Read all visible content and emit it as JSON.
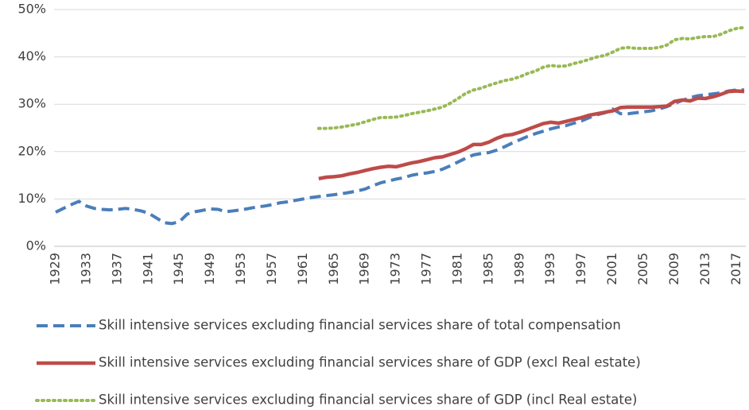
{
  "chart_data": {
    "type": "line",
    "categories": [
      "1929",
      null,
      null,
      null,
      "1933",
      null,
      null,
      null,
      "1937",
      null,
      null,
      null,
      "1941",
      null,
      null,
      null,
      "1945",
      null,
      null,
      null,
      "1949",
      null,
      null,
      null,
      "1953",
      null,
      null,
      null,
      "1957",
      null,
      null,
      null,
      "1961",
      null,
      null,
      null,
      "1965",
      null,
      null,
      null,
      "1969",
      null,
      null,
      null,
      "1973",
      null,
      null,
      null,
      "1977",
      null,
      null,
      null,
      "1981",
      null,
      null,
      null,
      "1985",
      null,
      null,
      null,
      "1989",
      null,
      null,
      null,
      "1993",
      null,
      null,
      null,
      "1997",
      null,
      null,
      null,
      "2001",
      null,
      null,
      null,
      "2005",
      null,
      null,
      null,
      "2009",
      null,
      null,
      null,
      "2013",
      null,
      null,
      null,
      "2017",
      null
    ],
    "series": [
      {
        "name": "Skill intensive services excluding financial services share of total compensation",
        "color": "#4a7ebb",
        "style": "dashed",
        "values": [
          7.2,
          8,
          8.8,
          9.5,
          8.5,
          8,
          7.8,
          7.7,
          7.8,
          8,
          7.8,
          7.5,
          7,
          6,
          5,
          4.8,
          5.2,
          6.8,
          7.3,
          7.6,
          7.9,
          7.8,
          7.3,
          7.5,
          7.7,
          8,
          8.3,
          8.5,
          8.8,
          9.2,
          9.4,
          9.7,
          10,
          10.3,
          10.5,
          10.7,
          10.9,
          11.1,
          11.4,
          11.7,
          12.1,
          12.8,
          13.4,
          13.8,
          14.2,
          14.5,
          15,
          15.3,
          15.5,
          15.8,
          16.3,
          17,
          17.8,
          18.6,
          19.3,
          19.6,
          19.8,
          20.3,
          21,
          21.8,
          22.5,
          23.2,
          23.8,
          24.3,
          24.8,
          25.2,
          25.5,
          26,
          26.5,
          27.2,
          27.8,
          28.2,
          29,
          28,
          28,
          28.2,
          28.4,
          28.6,
          29,
          29.5,
          30.2,
          30.8,
          31.4,
          31.8,
          32,
          32.2,
          32.4,
          32.8,
          33,
          33
        ]
      },
      {
        "name": "Skill intensive services excluding financial services share of  GDP (excl Real estate)",
        "color": "#be4b48",
        "style": "solid",
        "values": [
          null,
          null,
          null,
          null,
          null,
          null,
          null,
          null,
          null,
          null,
          null,
          null,
          null,
          null,
          null,
          null,
          null,
          null,
          null,
          null,
          null,
          null,
          null,
          null,
          null,
          null,
          null,
          null,
          null,
          null,
          null,
          null,
          null,
          null,
          14.3,
          14.6,
          14.7,
          14.9,
          15.3,
          15.6,
          16,
          16.4,
          16.7,
          16.9,
          16.8,
          17.2,
          17.6,
          17.9,
          18.3,
          18.7,
          18.9,
          19.4,
          19.9,
          20.6,
          21.5,
          21.5,
          22,
          22.8,
          23.4,
          23.6,
          24.1,
          24.7,
          25.3,
          25.9,
          26.2,
          26,
          26.4,
          26.8,
          27.2,
          27.7,
          28,
          28.3,
          28.6,
          29.3,
          29.4,
          29.4,
          29.4,
          29.4,
          29.5,
          29.6,
          30.6,
          30.9,
          30.7,
          31.3,
          31.2,
          31.6,
          32.1,
          32.7,
          32.8,
          32.7
        ]
      },
      {
        "name": "Skill intensive services excluding financial services share of GDP (incl Real estate)",
        "color": "#98b954",
        "style": "dotted",
        "values": [
          null,
          null,
          null,
          null,
          null,
          null,
          null,
          null,
          null,
          null,
          null,
          null,
          null,
          null,
          null,
          null,
          null,
          null,
          null,
          null,
          null,
          null,
          null,
          null,
          null,
          null,
          null,
          null,
          null,
          null,
          null,
          null,
          null,
          null,
          24.9,
          24.9,
          25,
          25.2,
          25.5,
          25.8,
          26.3,
          26.8,
          27.2,
          27.2,
          27.3,
          27.6,
          28,
          28.3,
          28.6,
          29,
          29.4,
          30.2,
          31.2,
          32.3,
          33,
          33.4,
          34,
          34.5,
          35,
          35.3,
          35.8,
          36.5,
          37,
          37.8,
          38.2,
          38,
          38.1,
          38.6,
          39,
          39.5,
          40,
          40.3,
          41,
          41.8,
          42,
          41.8,
          41.8,
          41.8,
          42,
          42.5,
          43.6,
          43.9,
          43.8,
          44.1,
          44.3,
          44.3,
          44.8,
          45.5,
          46,
          46.2
        ]
      }
    ],
    "ylim": [
      0,
      50
    ],
    "yticks": [
      {
        "value": 0,
        "label": "0%"
      },
      {
        "value": 10,
        "label": "10%"
      },
      {
        "value": 20,
        "label": "20%"
      },
      {
        "value": 30,
        "label": "30%"
      },
      {
        "value": 40,
        "label": "40%"
      },
      {
        "value": 50,
        "label": "50%"
      }
    ],
    "grid": true
  }
}
